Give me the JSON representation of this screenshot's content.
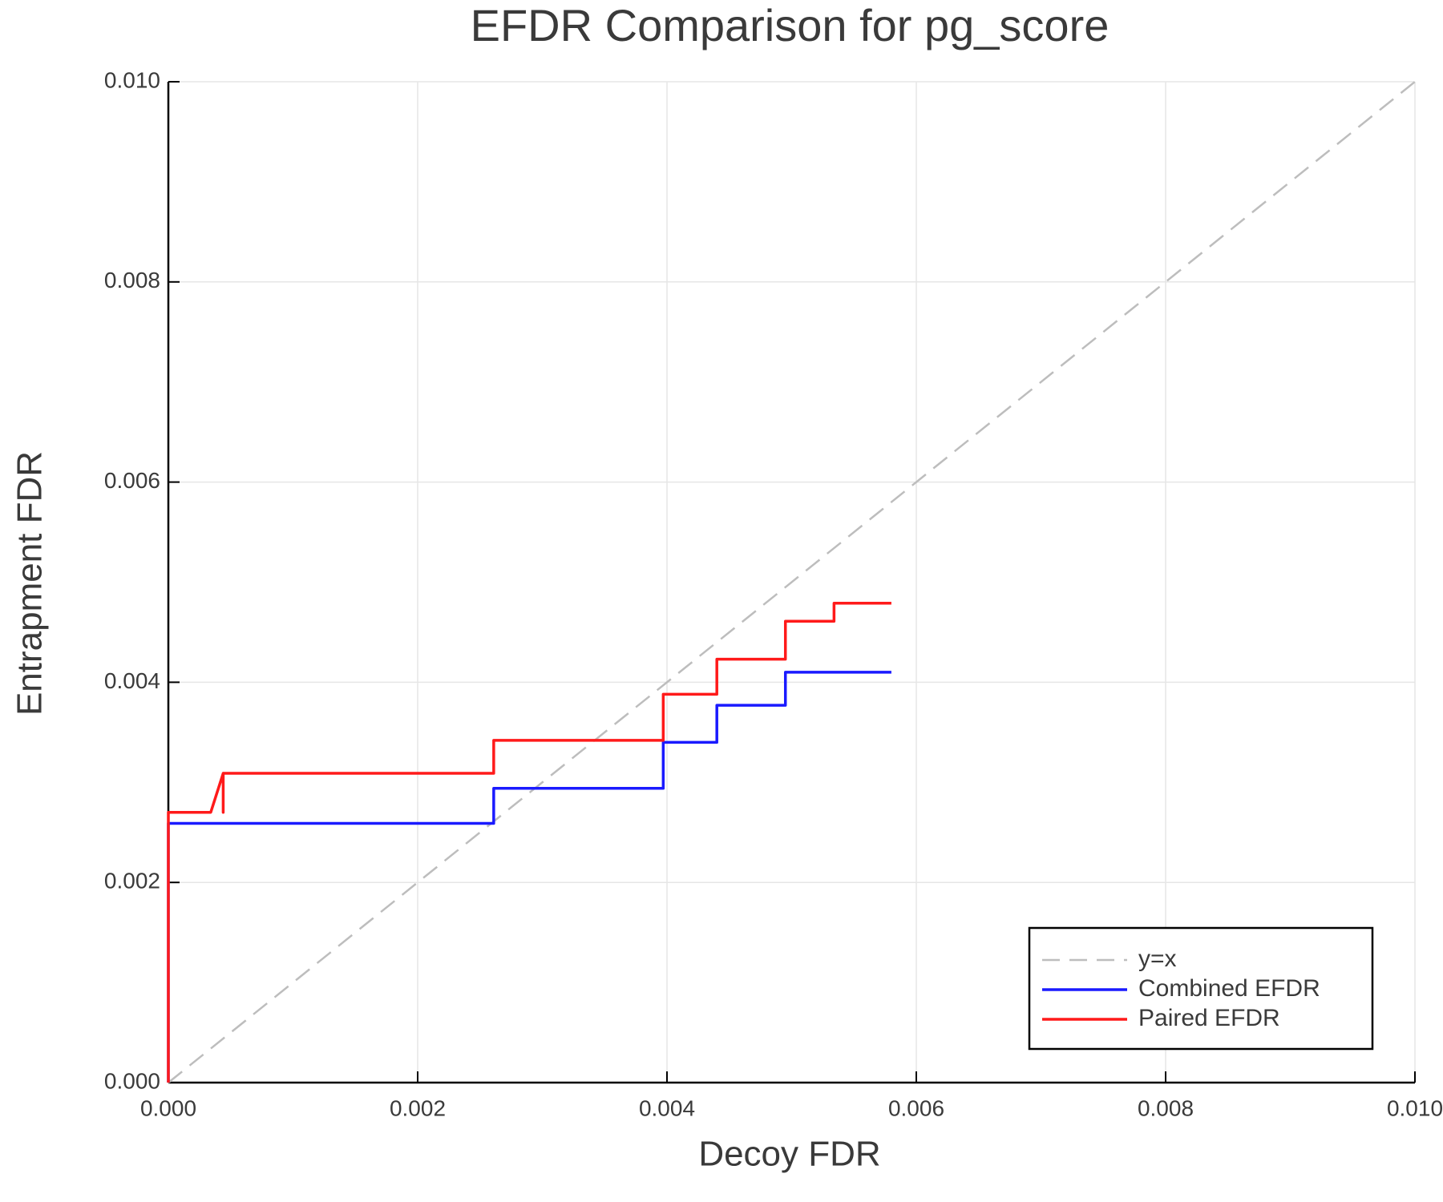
{
  "chart_data": {
    "type": "line",
    "title": "EFDR Comparison for pg_score",
    "x_label": "Decoy FDR",
    "y_label": "Entrapment FDR",
    "xlim": [
      0,
      0.01
    ],
    "ylim": [
      0,
      0.01
    ],
    "xticks": [
      {
        "value": 0,
        "label": "0.000"
      },
      {
        "value": 0.002,
        "label": "0.002"
      },
      {
        "value": 0.004,
        "label": "0.004"
      },
      {
        "value": 0.006,
        "label": "0.006"
      },
      {
        "value": 0.008,
        "label": "0.008"
      },
      {
        "value": 0.01,
        "label": "0.010"
      }
    ],
    "yticks": [
      {
        "value": 0,
        "label": "0.000"
      },
      {
        "value": 0.002,
        "label": "0.002"
      },
      {
        "value": 0.004,
        "label": "0.004"
      },
      {
        "value": 0.006,
        "label": "0.006"
      },
      {
        "value": 0.008,
        "label": "0.008"
      },
      {
        "value": 0.01,
        "label": "0.010"
      }
    ],
    "grid": true,
    "legend": "lower right",
    "series": [
      {
        "name": "y=x",
        "color": "#bdbdbd",
        "dashed": true,
        "x": [
          0,
          0.01
        ],
        "values": [
          0,
          0.01
        ]
      },
      {
        "name": "Combined EFDR",
        "color": "#1a1aff",
        "dashed": false,
        "x": [
          0,
          0,
          0.00261,
          0.00261,
          0.00397,
          0.00397,
          0.0044,
          0.0044,
          0.00495,
          0.00495,
          0.0058
        ],
        "values": [
          0,
          0.00259,
          0.00259,
          0.00294,
          0.00294,
          0.0034,
          0.0034,
          0.00377,
          0.00377,
          0.0041,
          0.0041
        ]
      },
      {
        "name": "Paired EFDR",
        "color": "#ff1a1a",
        "dashed": false,
        "x": [
          0,
          0,
          0.00034,
          0.00044,
          0.00044,
          0.00044,
          0.00261,
          0.00261,
          0.00397,
          0.00397,
          0.0044,
          0.0044,
          0.00495,
          0.00495,
          0.00534,
          0.00534,
          0.0058
        ],
        "values": [
          0,
          0.0027,
          0.0027,
          0.00309,
          0.0027,
          0.00309,
          0.00309,
          0.00342,
          0.00342,
          0.00388,
          0.00388,
          0.00423,
          0.00423,
          0.00461,
          0.00461,
          0.00479,
          0.00479
        ]
      }
    ]
  }
}
